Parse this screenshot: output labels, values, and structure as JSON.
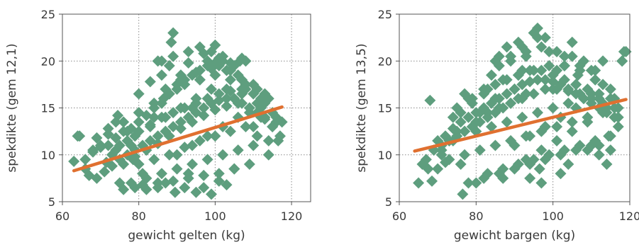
{
  "chart_data": [
    {
      "type": "scatter",
      "title": "",
      "xlabel": "gewicht gelten (kg)",
      "ylabel": "spekdikte (gem 12,1)",
      "xlim": [
        60,
        125
      ],
      "ylim": [
        5,
        25
      ],
      "xticks": [
        60,
        80,
        100,
        120
      ],
      "yticks": [
        5,
        10,
        15,
        20,
        25
      ],
      "xtick_labels": [
        "60",
        "80",
        "100",
        "120"
      ],
      "ytick_labels": [
        "5",
        "10",
        "15",
        "20",
        "25"
      ],
      "grid": true,
      "colors": {
        "points": "#5e9e7e",
        "trend": "#e07030"
      },
      "trend": {
        "x": [
          63,
          117.5
        ],
        "y": [
          8.3,
          15.1
        ]
      },
      "points": {
        "x": [
          63.0,
          64.0,
          64.5,
          66.0,
          67.0,
          68.0,
          69.0,
          70.0,
          71.5,
          72.0,
          73.0,
          74.0,
          74.5,
          75.0,
          76.0,
          77.0,
          78.0,
          78.5,
          79.0,
          80.0,
          81.0,
          82.0,
          83.0,
          84.0,
          85.0,
          86.0,
          86.5,
          87.0,
          88.0,
          89.0,
          89.5,
          90.0,
          91.0,
          92.0,
          93.0,
          94.0,
          95.0,
          96.0,
          97.0,
          98.0,
          99.0,
          100.0,
          101.0,
          102.0,
          103.0,
          104.0,
          105.0,
          106.0,
          107.0,
          108.0,
          109.0,
          110.0,
          111.0,
          112.0,
          113.0,
          114.0,
          115.0,
          116.0,
          117.0,
          69.0,
          71.0,
          73.0,
          75.0,
          77.0,
          79.0,
          81.0,
          83.0,
          85.0,
          87.0,
          89.0,
          91.0,
          93.0,
          95.0,
          97.0,
          99.0,
          101.0,
          103.0,
          105.0,
          107.0,
          109.0,
          111.0,
          113.0,
          72.0,
          76.0,
          80.0,
          84.0,
          88.0,
          92.0,
          96.0,
          100.0,
          104.0,
          108.0,
          112.0,
          80.0,
          84.0,
          88.0,
          92.0,
          96.0,
          100.0,
          104.0,
          108.0,
          78.0,
          82.0,
          86.0,
          90.0,
          94.0,
          98.0,
          102.0,
          106.0,
          110.0,
          114.0,
          75.0,
          79.0,
          83.0,
          87.0,
          91.0,
          95.0,
          99.0,
          103.0,
          107.0,
          111.0,
          85.0,
          89.0,
          93.0,
          97.0,
          101.0,
          105.0,
          81.0,
          85.0,
          89.0,
          93.0,
          97.0,
          101.0,
          105.0,
          109.0,
          74.0,
          77.0,
          80.0,
          83.0,
          86.0,
          89.0,
          92.0,
          95.0,
          98.0,
          101.0,
          104.0,
          107.0,
          110.0,
          113.0,
          116.0,
          76.0,
          79.0,
          82.0,
          85.0,
          88.0,
          91.0,
          94.0,
          97.0,
          100.0,
          103.0,
          106.0,
          109.0,
          112.0,
          115.0,
          90.0,
          94.0,
          98.0,
          102.0,
          106.0,
          87.0,
          91.0,
          95.0,
          99.0,
          103.0,
          107.0,
          86.0,
          96.0,
          93.0,
          88.5,
          96.0,
          99.0,
          101.0,
          106.5,
          108.0,
          114.0,
          110.0,
          104.0,
          111.0,
          113.0,
          115.0,
          116.5,
          117.5,
          66.0,
          68.0,
          70.0,
          72.0,
          74.0,
          76.0,
          78.0,
          80.0,
          82.0,
          84.0,
          86.0,
          88.0,
          90.0,
          92.0,
          94.0,
          96.0,
          98.0,
          100.0,
          102.0
        ],
        "y": [
          9.3,
          12.0,
          12.0,
          8.5,
          7.8,
          10.5,
          11.8,
          11.0,
          9.2,
          12.2,
          10.0,
          13.5,
          14.2,
          7.0,
          6.3,
          12.5,
          11.0,
          9.5,
          6.5,
          16.5,
          8.0,
          6.3,
          17.8,
          14.0,
          6.5,
          18.5,
          16.0,
          7.0,
          19.5,
          23.0,
          6.0,
          17.0,
          18.5,
          6.5,
          19.8,
          15.0,
          6.0,
          19.0,
          6.5,
          20.0,
          5.8,
          21.7,
          7.2,
          20.5,
          6.8,
          19.0,
          8.5,
          18.5,
          20.3,
          17.0,
          14.5,
          17.5,
          12.0,
          15.0,
          14.0,
          10.0,
          14.5,
          13.5,
          12.0,
          7.5,
          8.2,
          8.8,
          9.5,
          10.0,
          10.5,
          11.0,
          11.5,
          12.0,
          12.5,
          13.0,
          13.5,
          14.0,
          14.5,
          15.0,
          15.5,
          15.8,
          16.0,
          16.0,
          15.5,
          15.0,
          14.5,
          13.8,
          12.8,
          13.5,
          14.5,
          15.5,
          16.5,
          17.5,
          18.0,
          18.5,
          18.0,
          17.5,
          16.0,
          9.0,
          9.5,
          10.0,
          10.8,
          11.5,
          12.0,
          12.5,
          13.0,
          7.0,
          7.5,
          8.0,
          8.5,
          9.0,
          9.5,
          10.0,
          10.5,
          11.0,
          11.5,
          11.0,
          12.0,
          13.0,
          14.0,
          15.0,
          16.0,
          17.0,
          17.0,
          16.5,
          15.5,
          20.0,
          20.5,
          21.0,
          20.8,
          20.3,
          19.5,
          6.8,
          7.0,
          7.2,
          7.5,
          7.8,
          8.0,
          8.5,
          9.0,
          10.5,
          11.5,
          12.5,
          13.2,
          14.0,
          14.5,
          15.0,
          15.5,
          16.0,
          16.5,
          16.8,
          17.0,
          16.5,
          15.5,
          14.0,
          9.0,
          9.8,
          10.5,
          11.2,
          12.0,
          12.8,
          13.5,
          14.2,
          14.8,
          15.2,
          15.5,
          15.0,
          14.0,
          13.0,
          10.0,
          11.0,
          12.0,
          13.0,
          14.0,
          17.0,
          18.0,
          18.8,
          19.2,
          19.0,
          18.0,
          20.0,
          21.5,
          8.0,
          22.0,
          18.0,
          21.0,
          19.5,
          20.0,
          20.0,
          16.0,
          13.0,
          19.8,
          17.0,
          16.5,
          13.0,
          11.5,
          13.5,
          9.5,
          10.3,
          10.8,
          11.0,
          11.8,
          12.5,
          12.8,
          13.5,
          14.2,
          15.0,
          15.5,
          16.5,
          17.5,
          18.0,
          18.5,
          19.0,
          19.5,
          19.8,
          20.0
        ]
      }
    },
    {
      "type": "scatter",
      "title": "",
      "xlabel": "gewicht bargen (kg)",
      "ylabel": "spekdikte (gem 13,5)",
      "xlim": [
        60,
        120
      ],
      "ylim": [
        5,
        25
      ],
      "xticks": [
        60,
        80,
        100,
        120
      ],
      "yticks": [
        5,
        10,
        15,
        20,
        25
      ],
      "xtick_labels": [
        "60",
        "80",
        "100",
        "120"
      ],
      "ytick_labels": [
        "5",
        "10",
        "15",
        "20",
        "25"
      ],
      "grid": true,
      "colors": {
        "points": "#5e9e7e",
        "trend": "#e07030"
      },
      "trend": {
        "x": [
          64,
          119
        ],
        "y": [
          10.4,
          15.9
        ]
      },
      "points": {
        "x": [
          65.0,
          66.0,
          67.5,
          68.0,
          68.5,
          70.0,
          71.0,
          72.0,
          73.0,
          74.0,
          75.0,
          76.0,
          76.5,
          77.0,
          78.0,
          79.0,
          80.0,
          81.0,
          82.0,
          83.0,
          84.0,
          85.0,
          86.0,
          87.0,
          88.0,
          89.0,
          90.0,
          91.0,
          92.0,
          93.0,
          94.0,
          95.0,
          96.0,
          97.0,
          98.0,
          99.0,
          100.0,
          101.0,
          102.0,
          103.0,
          104.0,
          105.0,
          106.0,
          107.0,
          108.0,
          109.0,
          110.0,
          111.0,
          112.0,
          113.0,
          114.0,
          115.0,
          116.0,
          117.0,
          118.0,
          118.5,
          70.0,
          72.0,
          74.0,
          76.0,
          78.0,
          80.0,
          82.0,
          84.0,
          86.0,
          88.0,
          90.0,
          92.0,
          94.0,
          96.0,
          98.0,
          100.0,
          102.0,
          104.0,
          106.0,
          108.0,
          110.0,
          112.0,
          114.0,
          116.0,
          73.0,
          77.0,
          81.0,
          85.0,
          89.0,
          93.0,
          97.0,
          101.0,
          105.0,
          109.0,
          113.0,
          117.0,
          75.0,
          79.0,
          83.0,
          87.0,
          91.0,
          95.0,
          99.0,
          103.0,
          107.0,
          111.0,
          115.0,
          78.0,
          82.0,
          86.0,
          90.0,
          94.0,
          98.0,
          102.0,
          106.0,
          110.0,
          80.0,
          84.0,
          88.0,
          92.0,
          96.0,
          100.0,
          104.0,
          108.0,
          112.0,
          85.0,
          89.0,
          93.0,
          97.0,
          101.0,
          105.0,
          87.0,
          91.0,
          95.0,
          99.0,
          103.0,
          107.0,
          111.0,
          115.0,
          71.0,
          74.0,
          77.0,
          80.0,
          83.0,
          86.0,
          89.0,
          92.0,
          95.0,
          98.0,
          101.0,
          104.0,
          107.0,
          110.0,
          113.0,
          116.0,
          76.0,
          79.0,
          82.0,
          85.0,
          88.0,
          91.0,
          94.0,
          97.0,
          100.0,
          103.0,
          106.0,
          109.0,
          112.0,
          115.0,
          90.0,
          94.0,
          98.0,
          102.0,
          106.0,
          93.0,
          97.0,
          101.0,
          105.0,
          109.0,
          86.0,
          92.0,
          96.0,
          96.5,
          98.0,
          103.0,
          106.5,
          110.0,
          113.0,
          118.0,
          119.0,
          114.0,
          112.0,
          114.5,
          117.0,
          67.0,
          69.0,
          71.0,
          73.0,
          75.0,
          77.0,
          79.0,
          81.0,
          83.0,
          85.0,
          87.0,
          89.0,
          91.0,
          93.0
        ],
        "y": [
          7.0,
          9.0,
          8.5,
          15.8,
          7.2,
          8.5,
          10.0,
          9.2,
          11.5,
          14.0,
          12.5,
          9.0,
          5.8,
          16.5,
          16.0,
          13.0,
          7.0,
          14.5,
          17.0,
          8.0,
          18.5,
          16.0,
          19.5,
          7.5,
          21.5,
          20.0,
          17.0,
          22.0,
          19.0,
          20.5,
          7.5,
          23.0,
          23.5,
          7.0,
          22.5,
          21.0,
          17.0,
          19.0,
          8.0,
          20.5,
          9.0,
          22.0,
          17.5,
          19.5,
          20.0,
          10.5,
          16.5,
          19.0,
          11.0,
          20.0,
          9.0,
          10.5,
          16.0,
          14.0,
          20.0,
          21.0,
          11.5,
          12.0,
          12.8,
          13.5,
          14.0,
          14.5,
          15.0,
          15.5,
          16.0,
          16.5,
          17.0,
          17.5,
          17.8,
          18.0,
          18.0,
          17.8,
          17.5,
          17.0,
          16.5,
          16.0,
          15.5,
          15.0,
          14.5,
          14.0,
          9.5,
          10.0,
          10.5,
          11.0,
          11.5,
          12.0,
          12.5,
          13.0,
          13.5,
          14.0,
          14.5,
          15.0,
          15.0,
          16.0,
          17.0,
          18.0,
          18.5,
          19.0,
          19.5,
          19.5,
          19.0,
          18.0,
          17.0,
          7.0,
          7.5,
          8.0,
          8.5,
          9.0,
          9.5,
          10.0,
          10.5,
          11.0,
          12.5,
          13.0,
          13.5,
          14.0,
          14.5,
          15.0,
          15.5,
          16.0,
          16.0,
          20.0,
          20.5,
          21.0,
          21.5,
          21.0,
          20.5,
          8.5,
          9.0,
          9.5,
          10.0,
          10.5,
          11.0,
          11.5,
          12.0,
          10.5,
          11.5,
          12.5,
          13.5,
          14.5,
          15.0,
          15.5,
          16.0,
          16.5,
          17.0,
          17.0,
          16.8,
          16.5,
          16.0,
          15.5,
          15.0,
          14.5,
          15.5,
          16.5,
          17.5,
          18.0,
          18.5,
          19.0,
          19.0,
          18.5,
          18.0,
          17.5,
          17.0,
          16.5,
          16.0,
          11.0,
          12.0,
          13.0,
          14.0,
          15.0,
          9.5,
          10.5,
          11.5,
          12.5,
          13.5,
          20.5,
          21.5,
          22.5,
          8.5,
          13.0,
          19.5,
          18.5,
          19.0,
          17.5,
          20.0,
          21.0,
          15.0,
          10.0,
          12.0,
          13.0,
          9.5,
          10.5,
          11.0,
          11.5,
          12.0,
          12.5,
          13.0,
          13.5,
          14.0,
          14.5,
          15.0,
          15.5,
          16.0,
          16.5
        ]
      }
    }
  ]
}
